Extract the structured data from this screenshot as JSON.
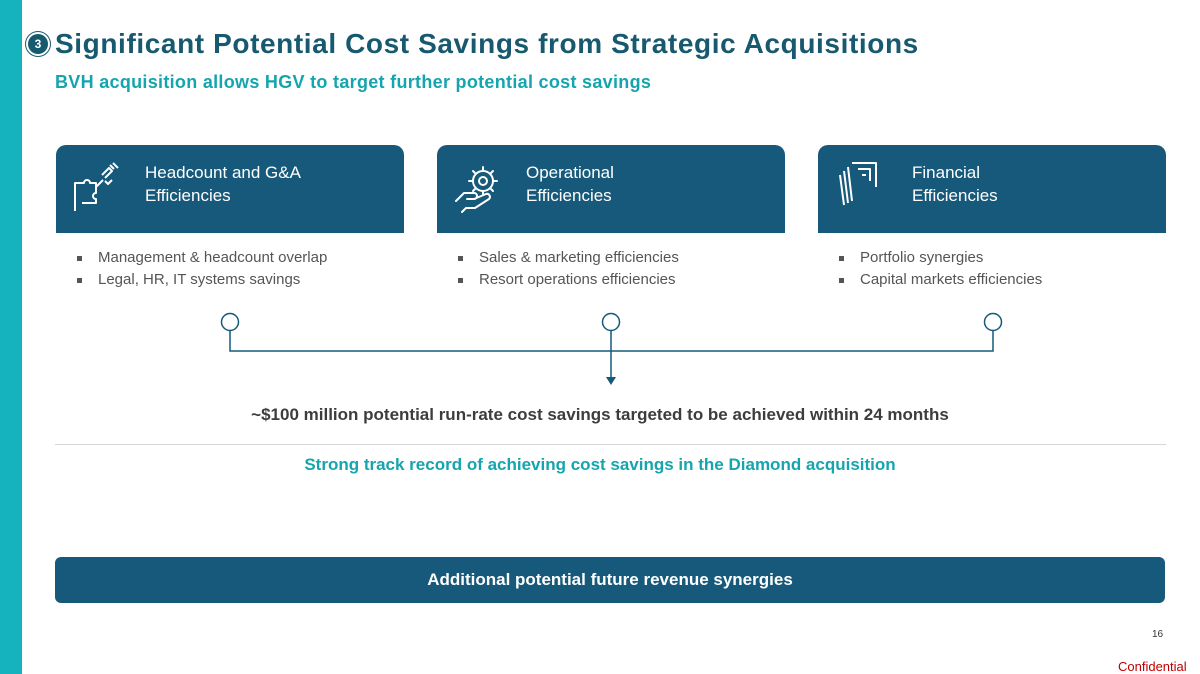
{
  "slide": {
    "section_number": "3",
    "title": "Significant Potential Cost Savings from Strategic Acquisitions",
    "subtitle": "BVH acquisition allows HGV to target further potential cost savings"
  },
  "cards": [
    {
      "label_line1": "Headcount and G&A",
      "label_line2": "Efficiencies",
      "icon": "puzzle-hand-icon",
      "bullets": [
        "Management & headcount overlap",
        "Legal, HR, IT systems savings"
      ]
    },
    {
      "label_line1": "Operational",
      "label_line2": "Efficiencies",
      "icon": "gear-hand-icon",
      "bullets": [
        "Sales & marketing efficiencies",
        "Resort operations efficiencies"
      ]
    },
    {
      "label_line1": "Financial",
      "label_line2": "Efficiencies",
      "icon": "documents-icon",
      "bullets": [
        "Portfolio synergies",
        "Capital markets efficiencies"
      ]
    }
  ],
  "savings_text": "~$100 million potential run-rate cost savings targeted to be achieved within 24 months",
  "track_record_text": "Strong track record of achieving cost savings in the Diamond acquisition",
  "revenue_box_text": "Additional potential future revenue synergies",
  "page_number": "16",
  "confidential_label": "Confidential",
  "colors": {
    "primary": "#16597a",
    "accent": "#14a5ae",
    "sidebar": "#14b3bd",
    "confidential": "#c00000"
  }
}
